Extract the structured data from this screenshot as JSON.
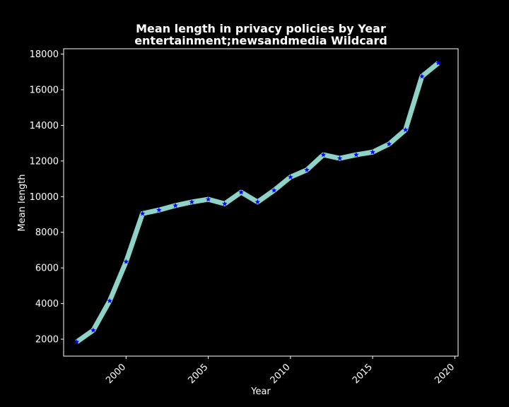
{
  "chart_data": {
    "type": "line",
    "title_line1": "Mean length in privacy policies by Year",
    "title_line2": "entertainment;newsandmedia Wildcard",
    "xlabel": "Year",
    "ylabel": "Mean length",
    "xlim": [
      1996.2,
      2020.2
    ],
    "ylim": [
      1050,
      18300
    ],
    "xticks": [
      2000,
      2005,
      2010,
      2015,
      2020
    ],
    "yticks": [
      2000,
      4000,
      6000,
      8000,
      10000,
      12000,
      14000,
      16000,
      18000
    ],
    "grid": false,
    "line_color": "#8dd3c7",
    "marker_color": "#0000ff",
    "marker": "star",
    "background": "#000000",
    "series": [
      {
        "x": [
          1997,
          1998,
          1999,
          2000,
          2001,
          2002,
          2003,
          2004,
          2005,
          2006,
          2007,
          2008,
          2009,
          2010,
          2011,
          2012,
          2013,
          2014,
          2015,
          2016,
          2017,
          2018,
          2019
        ],
        "values": [
          1850,
          2500,
          4150,
          6350,
          9050,
          9250,
          9500,
          9700,
          9850,
          9600,
          10250,
          9700,
          10350,
          11100,
          11500,
          12350,
          12150,
          12350,
          12500,
          12950,
          13750,
          16750,
          17500
        ]
      }
    ]
  }
}
